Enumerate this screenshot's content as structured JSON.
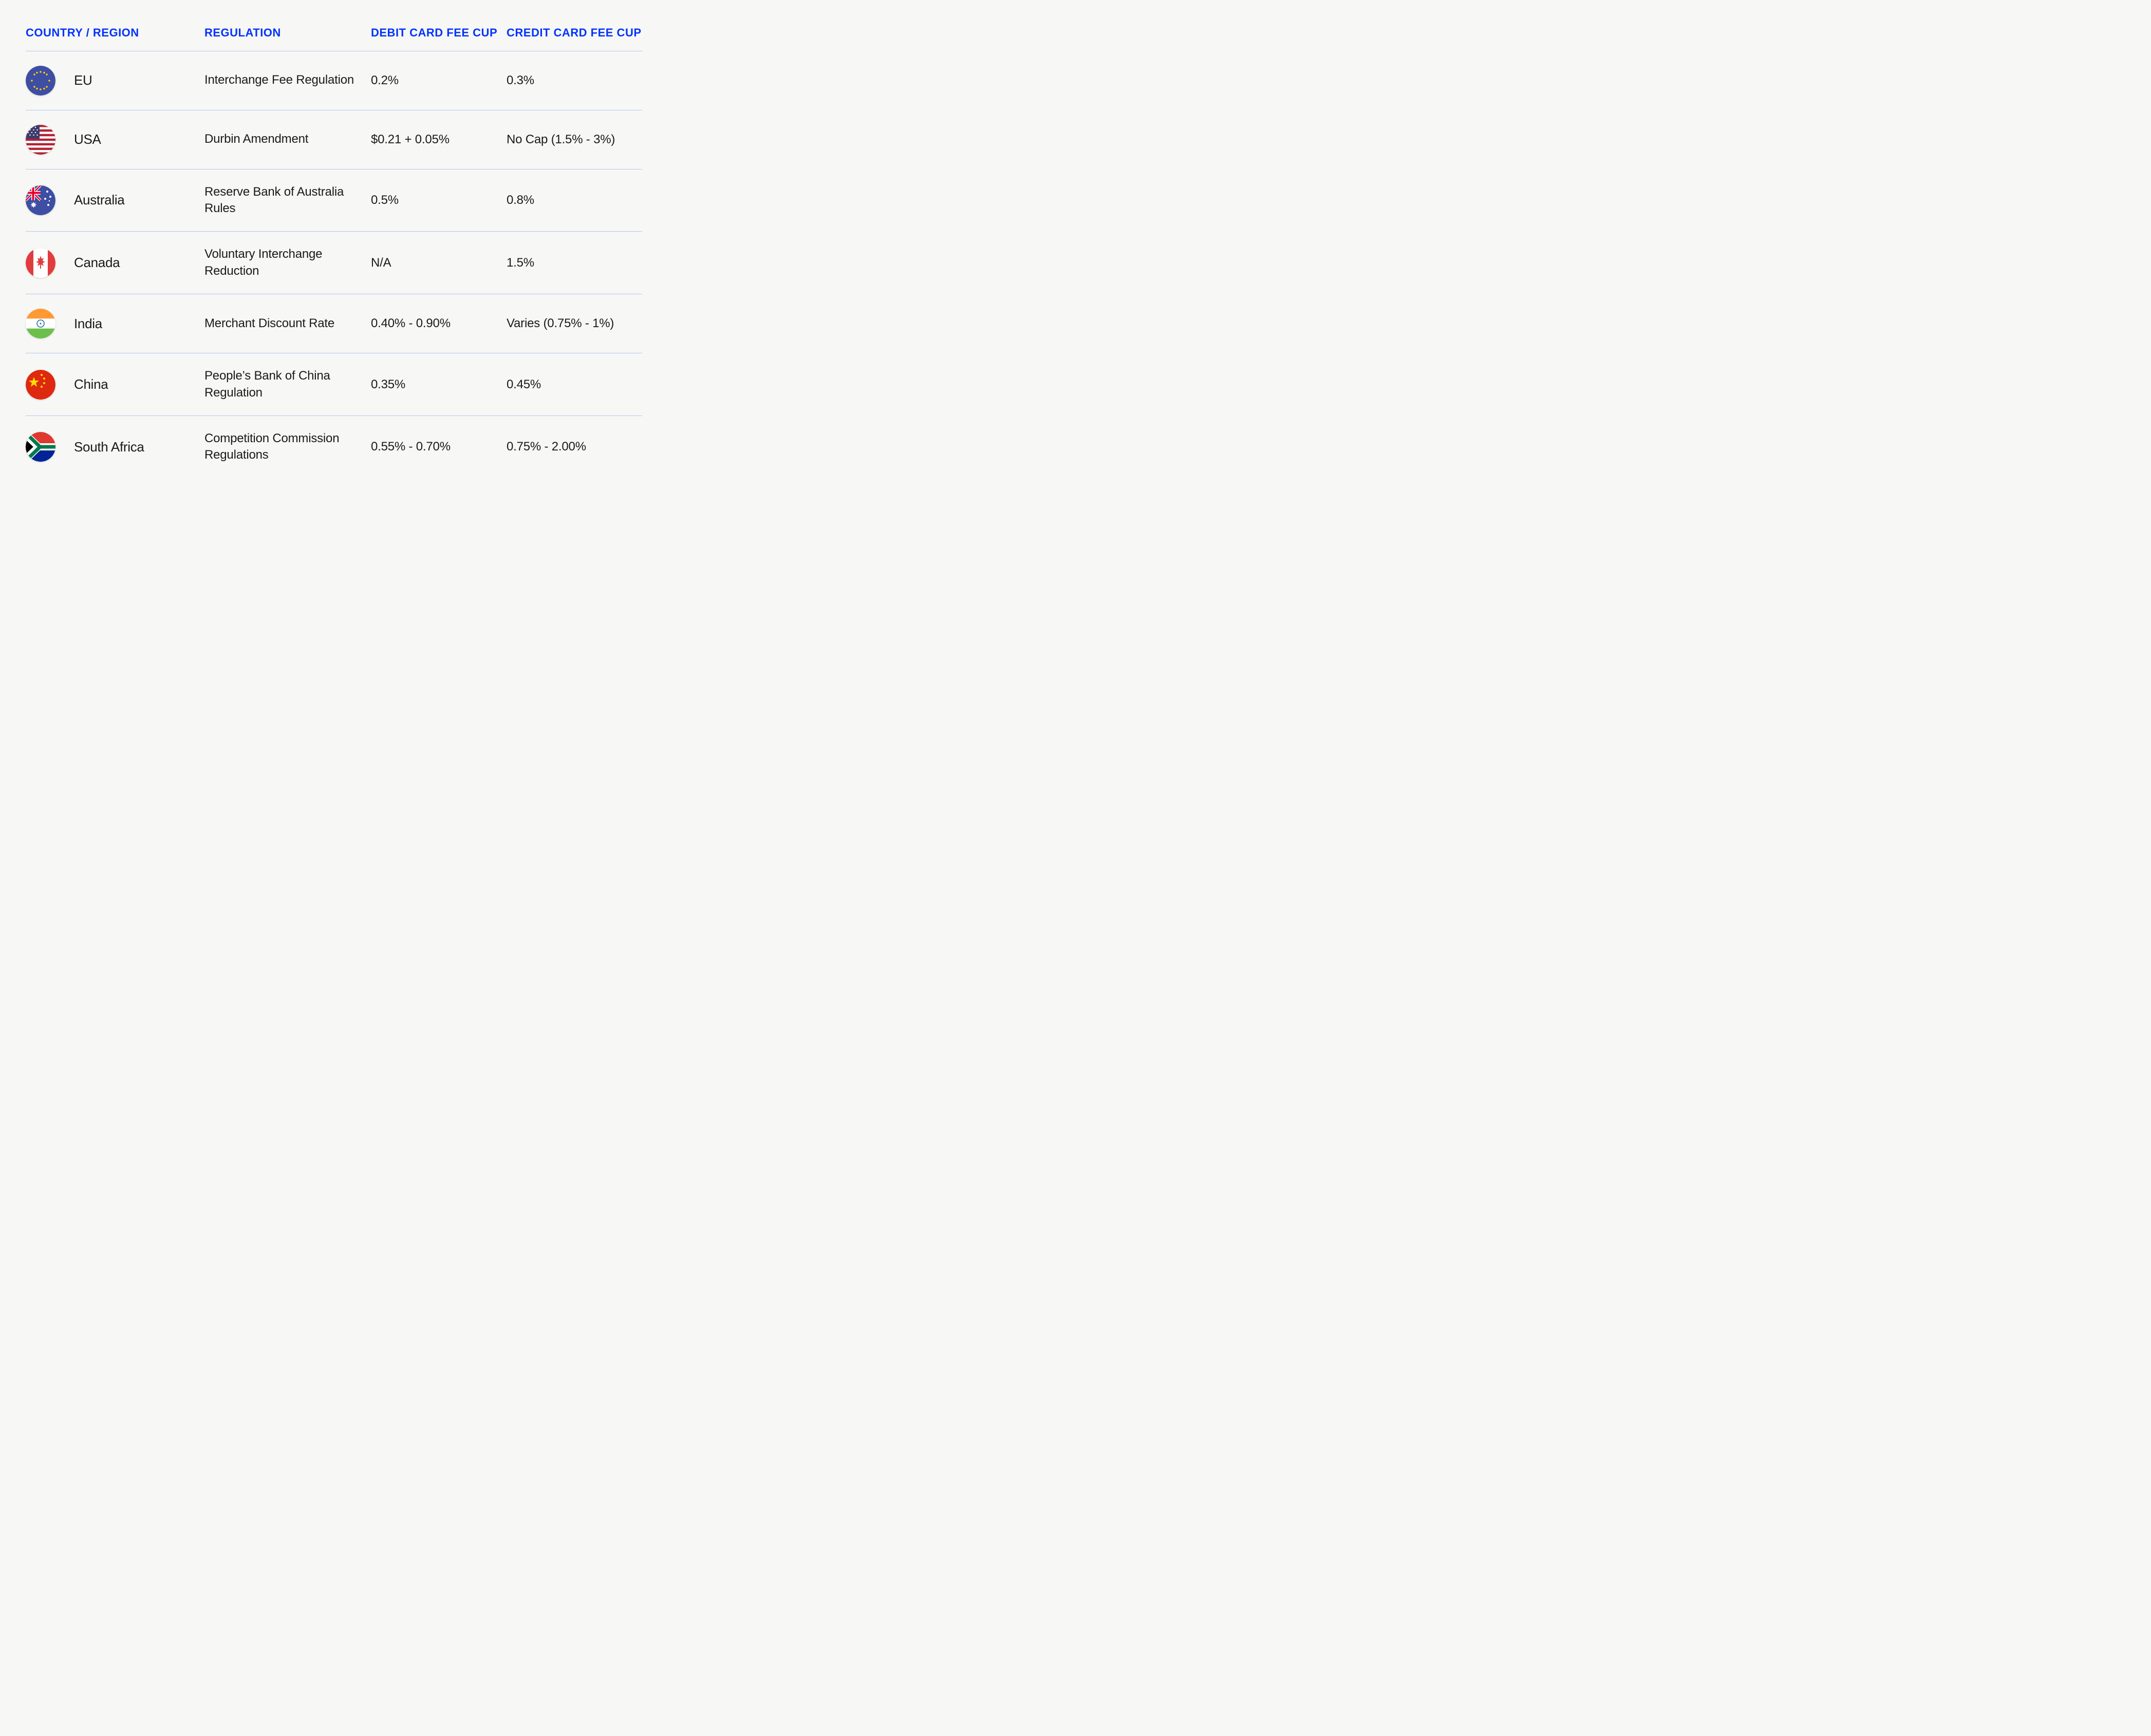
{
  "headers": {
    "country": "COUNTRY / REGION",
    "regulation": "REGULATION",
    "debit": "DEBIT CARD FEE CUP",
    "credit": "CREDIT CARD FEE CUP"
  },
  "style": {
    "header_color": "#0033ff",
    "border_color": "#b8c5f0",
    "text_color": "#1a1a1a",
    "background_color": "#f7f7f5",
    "header_fontsize": 22,
    "body_fontsize": 24,
    "country_fontsize": 26,
    "flag_diameter": 58
  },
  "rows": [
    {
      "flag": "eu",
      "country": "EU",
      "regulation": "Interchange Fee Regulation",
      "debit": "0.2%",
      "credit": "0.3%"
    },
    {
      "flag": "usa",
      "country": "USA",
      "regulation": "Durbin Amendment",
      "debit": "$0.21 + 0.05%",
      "credit": "No Cap (1.5% - 3%)"
    },
    {
      "flag": "australia",
      "country": "Australia",
      "regulation": "Reserve Bank of Australia Rules",
      "debit": "0.5%",
      "credit": "0.8%"
    },
    {
      "flag": "canada",
      "country": "Canada",
      "regulation": "Voluntary Interchange Reduction",
      "debit": "N/A",
      "credit": "1.5%"
    },
    {
      "flag": "india",
      "country": "India",
      "regulation": "Merchant Discount Rate",
      "debit": "0.40% - 0.90%",
      "credit": "Varies (0.75% - 1%)"
    },
    {
      "flag": "china",
      "country": "China",
      "regulation": "People’s Bank of China Regulation",
      "debit": "0.35%",
      "credit": "0.45%"
    },
    {
      "flag": "south-africa",
      "country": "South Africa",
      "regulation": "Competition Commission Regulations",
      "debit": "0.55% - 0.70%",
      "credit": "0.75% - 2.00%"
    }
  ],
  "flag_colors": {
    "eu": {
      "bg": "#3d4ea3",
      "star": "#ffcc00"
    },
    "usa": {
      "red": "#b22234",
      "white": "#ffffff",
      "blue": "#3c3b6e"
    },
    "australia": {
      "blue": "#3d4ea3",
      "red": "#e4002b",
      "white": "#ffffff"
    },
    "canada": {
      "red": "#e03c3e",
      "white": "#ffffff"
    },
    "india": {
      "saffron": "#ff9933",
      "white": "#ffffff",
      "green": "#6bbf4a",
      "chakra": "#1a6b9f"
    },
    "china": {
      "red": "#de2910",
      "yellow": "#ffde00"
    },
    "south-africa": {
      "green": "#007a4d",
      "black": "#000000",
      "yellow": "#ffb612",
      "red": "#de3831",
      "blue": "#002395",
      "white": "#ffffff"
    }
  }
}
